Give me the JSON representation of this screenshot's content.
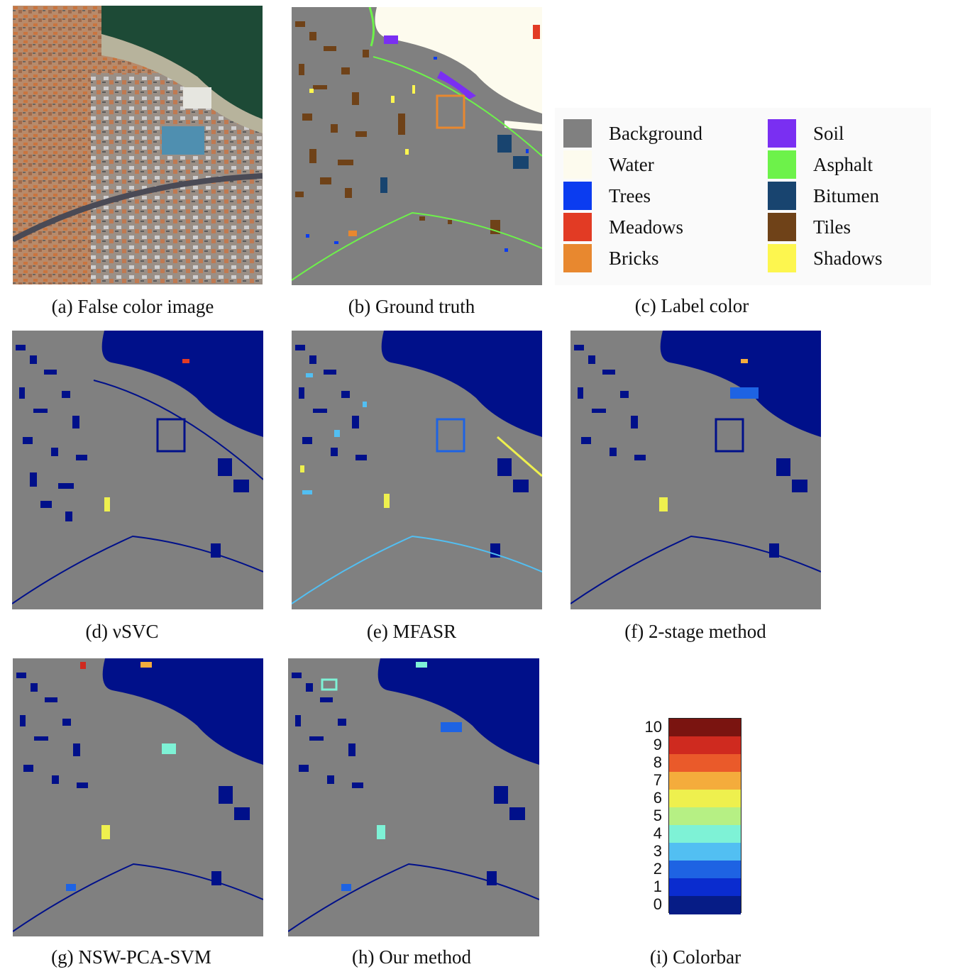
{
  "captions": {
    "a": "(a) False color image",
    "b": "(b) Ground truth",
    "c": "(c) Label color",
    "d": "(d) νSVC",
    "e": "(e) MFASR",
    "f": "(f) 2-stage method",
    "g": "(g) NSW-PCA-SVM",
    "h": "(h) Our method",
    "i": "(i) Colorbar"
  },
  "legend": {
    "items": [
      {
        "label": "Background",
        "color": "#808080"
      },
      {
        "label": "Water",
        "color": "#fdfbee"
      },
      {
        "label": "Trees",
        "color": "#0b3cf0"
      },
      {
        "label": "Meadows",
        "color": "#e23b24"
      },
      {
        "label": "Bricks",
        "color": "#e8882f"
      },
      {
        "label": "Soil",
        "color": "#7a2ff2"
      },
      {
        "label": "Asphalt",
        "color": "#6df24a"
      },
      {
        "label": "Bitumen",
        "color": "#18446f"
      },
      {
        "label": "Tiles",
        "color": "#6f4218"
      },
      {
        "label": "Shadows",
        "color": "#fdf64f"
      }
    ]
  },
  "colorbar": {
    "ticks": [
      "10",
      "9",
      "8",
      "7",
      "6",
      "5",
      "4",
      "3",
      "2",
      "1",
      "0"
    ],
    "colors": [
      "#7a1410",
      "#cf2a1f",
      "#ea5a2a",
      "#f4ac3c",
      "#eef04e",
      "#b6f084",
      "#7ef2d6",
      "#52bff2",
      "#1e63e3",
      "#0a2ccf",
      "#061c86"
    ]
  },
  "colors": {
    "background_gray": "#808080",
    "error_dark_blue": "#00108a",
    "river_water": "#1d4f3a"
  }
}
